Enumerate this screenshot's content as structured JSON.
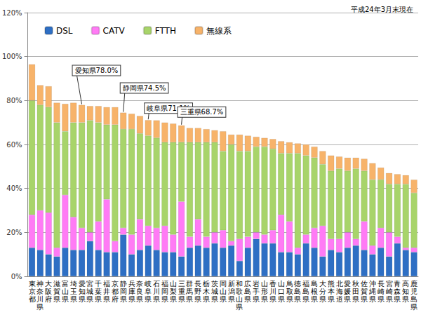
{
  "chart_data": {
    "type": "bar",
    "subtitle": "平成24年3月末現在",
    "categories": [
      "東京都",
      "神奈川県",
      "大阪府",
      "滋賀県",
      "富山県",
      "埼玉県",
      "愛知県",
      "宮城県",
      "千葉県",
      "福井県",
      "京都府",
      "静岡県",
      "兵庫県",
      "奈良県",
      "岐阜県",
      "石川県",
      "福岡県",
      "山梨県",
      "三重県",
      "群馬県",
      "長野県",
      "栃木県",
      "茨城県",
      "岡山県",
      "新潟県",
      "和歌山県",
      "広島県",
      "岩手県",
      "山形県",
      "香川県",
      "山口県",
      "鳥取県",
      "徳島県",
      "福島県",
      "島根県",
      "大分県",
      "熊本県",
      "北海道",
      "愛媛県",
      "秋田県",
      "佐賀県",
      "沖縄県",
      "長崎県",
      "宮崎県",
      "青森県",
      "高知県",
      "鹿児島県"
    ],
    "series": [
      {
        "name": "DSL",
        "color": "#2e6fc4",
        "values": [
          13,
          12,
          10,
          9,
          13,
          12,
          12,
          16,
          12,
          11,
          11,
          19,
          10,
          12,
          14,
          12,
          11,
          11,
          9,
          13,
          14,
          13,
          15,
          13,
          14,
          7,
          13,
          17,
          15,
          15,
          11,
          11,
          10,
          15,
          13,
          9,
          12,
          11,
          13,
          14,
          12,
          10,
          13,
          9,
          15,
          12,
          11
        ]
      },
      {
        "name": "CATV",
        "color": "#ff7bf5",
        "values": [
          15,
          18,
          19,
          4,
          24,
          15,
          10,
          4,
          13,
          24,
          5,
          3,
          9,
          14,
          9,
          10,
          12,
          8,
          25,
          5,
          12,
          5,
          5,
          8,
          2,
          10,
          5,
          3,
          4,
          6,
          17,
          14,
          3,
          4,
          9,
          14,
          5,
          6,
          7,
          3,
          13,
          4,
          9,
          11,
          3,
          1,
          2
        ]
      },
      {
        "name": "FTTH",
        "color": "#a8d46a",
        "values": [
          52,
          48,
          48,
          57,
          29,
          43,
          48,
          51,
          45,
          34,
          53,
          45,
          48,
          39,
          41,
          41,
          38,
          42,
          27,
          43,
          35,
          43,
          41,
          36,
          44,
          40,
          39,
          39,
          40,
          37,
          28,
          31,
          43,
          36,
          32,
          28,
          31,
          32,
          28,
          32,
          23,
          30,
          22,
          22,
          24,
          29,
          25
        ]
      },
      {
        "name": "無線系",
        "color": "#f7b36a",
        "values": [
          16.5,
          9,
          9.5,
          9,
          12.5,
          9,
          8,
          6.5,
          7.5,
          8,
          8,
          7.5,
          7,
          8,
          7.1,
          8,
          9,
          8.5,
          7.7,
          6.5,
          6.5,
          6,
          5.5,
          9,
          4.5,
          7.5,
          7,
          4.5,
          4,
          4.5,
          5.5,
          5,
          4.5,
          5,
          5,
          6,
          7,
          5.5,
          6,
          5,
          5.5,
          7.5,
          5.5,
          5,
          4.5,
          4,
          6
        ]
      }
    ],
    "ylim": [
      0,
      120
    ],
    "yticks": [
      {
        "value": 0,
        "label": "0%"
      },
      {
        "value": 20,
        "label": "20%"
      },
      {
        "value": 40,
        "label": "40%"
      },
      {
        "value": 60,
        "label": "60%"
      },
      {
        "value": 80,
        "label": "80%"
      },
      {
        "value": 100,
        "label": "100%"
      },
      {
        "value": 120,
        "label": "120%"
      }
    ],
    "grid": true,
    "stacked": true,
    "legend": "upper left",
    "annotations": [
      {
        "text": "愛知県78.0%",
        "category": "愛知県",
        "value": 78.0
      },
      {
        "text": "静岡県74.5%",
        "category": "静岡県",
        "value": 74.5
      },
      {
        "text": "岐阜県71.1%",
        "category": "岐阜県",
        "value": 71.1
      },
      {
        "text": "三重県68.7%",
        "category": "三重県",
        "value": 68.7
      }
    ]
  }
}
